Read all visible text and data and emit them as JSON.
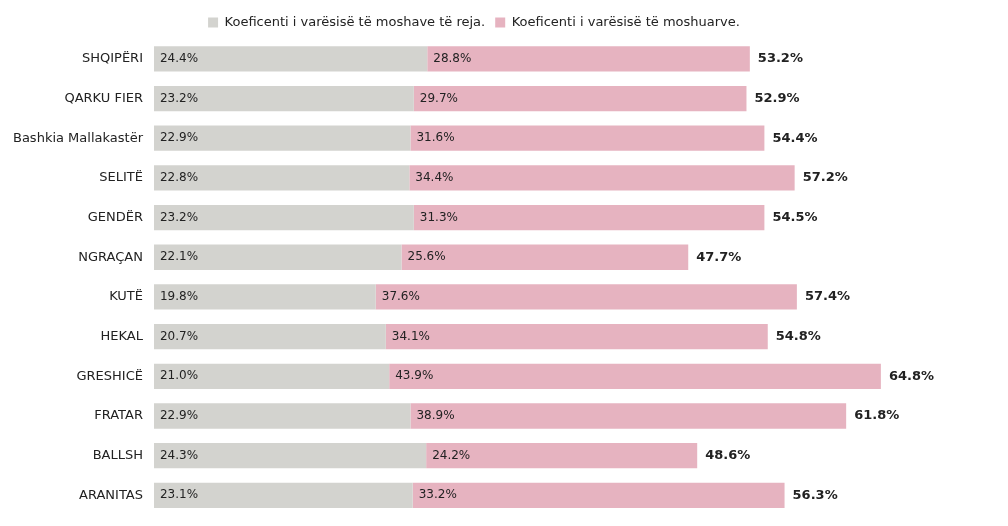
{
  "chart_data": {
    "type": "bar",
    "orientation": "horizontal",
    "stacked": true,
    "legend": "top",
    "grid": false,
    "tick_labels": "y",
    "categories": [
      "SHQIPËRI",
      "QARKU FIER",
      "Bashkia Mallakastër",
      "SELITË",
      "GENDËR",
      "NGRAÇAN",
      "KUTË",
      "HEKAL",
      "GRESHICË",
      "FRATAR",
      "BALLSH",
      "ARANITAS"
    ],
    "series": [
      {
        "name": "Koeficenti i varësisë të moshave të reja.",
        "color": "#d3d3cf",
        "values": [
          24.4,
          23.2,
          22.9,
          22.8,
          23.2,
          22.1,
          19.8,
          20.7,
          21.0,
          22.9,
          24.3,
          23.1
        ],
        "value_labels": [
          "24.4%",
          "23.2%",
          "22.9%",
          "22.8%",
          "23.2%",
          "22.1%",
          "19.8%",
          "20.7%",
          "21.0%",
          "22.9%",
          "24.3%",
          "23.1%"
        ]
      },
      {
        "name": "Koeficenti i varësisë të moshuarve.",
        "color": "#e6b3c0",
        "values": [
          28.8,
          29.7,
          31.6,
          34.4,
          31.3,
          25.6,
          37.6,
          34.1,
          43.9,
          38.9,
          24.2,
          33.2
        ],
        "value_labels": [
          "28.8%",
          "29.7%",
          "31.6%",
          "34.4%",
          "31.3%",
          "25.6%",
          "37.6%",
          "34.1%",
          "43.9%",
          "38.9%",
          "24.2%",
          "33.2%"
        ]
      }
    ],
    "totals": [
      "53.2%",
      "52.9%",
      "54.4%",
      "57.2%",
      "54.5%",
      "47.7%",
      "57.4%",
      "54.8%",
      "64.8%",
      "61.8%",
      "48.6%",
      "56.3%"
    ]
  }
}
